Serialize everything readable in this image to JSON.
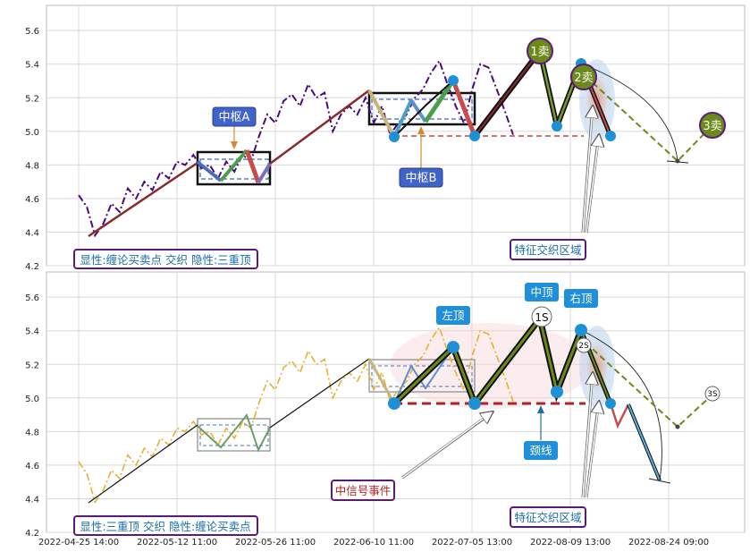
{
  "chart_data": [
    {
      "type": "line",
      "panel": "top",
      "ylim": [
        4.2,
        5.75
      ],
      "yticks": [
        "4.2",
        "4.4",
        "4.6",
        "4.8",
        "5.0",
        "5.2",
        "5.4",
        "5.6"
      ],
      "legend_text": "显性:缠论买卖点 交织 隐性:三重顶",
      "labels": {
        "zhongshu_a": "中枢A",
        "zhongshu_b": "中枢B",
        "sell1": "1卖",
        "sell2": "2卖",
        "sell3": "3卖",
        "zone": "特征交织区域"
      },
      "series": [
        {
          "values": [
            4.62,
            4.55,
            4.38,
            4.45,
            4.57,
            4.52,
            4.66,
            4.6,
            4.7,
            4.65,
            4.76,
            4.72,
            4.82,
            4.8,
            4.86,
            4.78,
            4.8,
            4.72,
            4.82,
            4.76,
            4.86,
            4.82,
            4.97,
            5.1,
            5.05,
            5.18,
            5.22,
            5.15,
            5.28,
            5.2,
            5.23,
            5.0,
            5.1,
            5.15,
            5.1,
            5.2,
            5.05,
            5.15,
            4.98,
            5.05,
            5.1,
            5.2,
            5.25,
            5.35,
            5.42,
            5.28,
            5.15,
            5.05,
            5.25,
            5.4,
            5.38,
            5.25,
            5.12,
            4.98
          ]
        },
        {
          "values": [
            4.37,
            4.83,
            4.7,
            4.88,
            4.68,
            5.23,
            4.96,
            5.15,
            4.96,
            5.31,
            4.97,
            5.45,
            5.03,
            5.41,
            4.98,
            4.82,
            5.05
          ]
        }
      ]
    },
    {
      "type": "line",
      "panel": "bottom",
      "ylim": [
        4.2,
        5.75
      ],
      "yticks": [
        "4.2",
        "4.4",
        "4.6",
        "4.8",
        "5.0",
        "5.2",
        "5.4",
        "5.6"
      ],
      "x_tick_labels": [
        "2022-04-25 14:00",
        "2022-05-12 11:00",
        "2022-05-26 11:00",
        "2022-06-10 11:00",
        "2022-07-05 13:00",
        "2022-08-09 13:00",
        "2022-08-24 09:00"
      ],
      "legend_text": "显性:三重顶 交织 隐性:缠论买卖点",
      "labels": {
        "left_top": "左顶",
        "mid_top": "中顶",
        "right_top": "右顶",
        "neckline": "颈线",
        "s1": "1S",
        "s2": "2S",
        "s3": "3S",
        "event": "中信号事件",
        "zone": "特征交织区域"
      },
      "series": [
        {
          "values": [
            4.62,
            4.55,
            4.38,
            4.45,
            4.57,
            4.52,
            4.66,
            4.6,
            4.7,
            4.65,
            4.76,
            4.72,
            4.82,
            4.8,
            4.86,
            4.78,
            4.8,
            4.72,
            4.82,
            4.76,
            4.86,
            4.82,
            4.97,
            5.1,
            5.05,
            5.18,
            5.22,
            5.15,
            5.28,
            5.2,
            5.23,
            5.0,
            5.1,
            5.15,
            5.1,
            5.2,
            5.05,
            5.15,
            4.98,
            5.05,
            5.1,
            5.2,
            5.25,
            5.35,
            5.42,
            5.28,
            5.15,
            5.05,
            5.25,
            5.4,
            5.38,
            5.25,
            5.12,
            4.98
          ]
        },
        {
          "values": [
            4.97,
            5.31,
            4.97,
            5.45,
            5.03,
            5.41,
            4.97,
            4.83,
            4.98,
            4.5
          ]
        }
      ]
    }
  ]
}
